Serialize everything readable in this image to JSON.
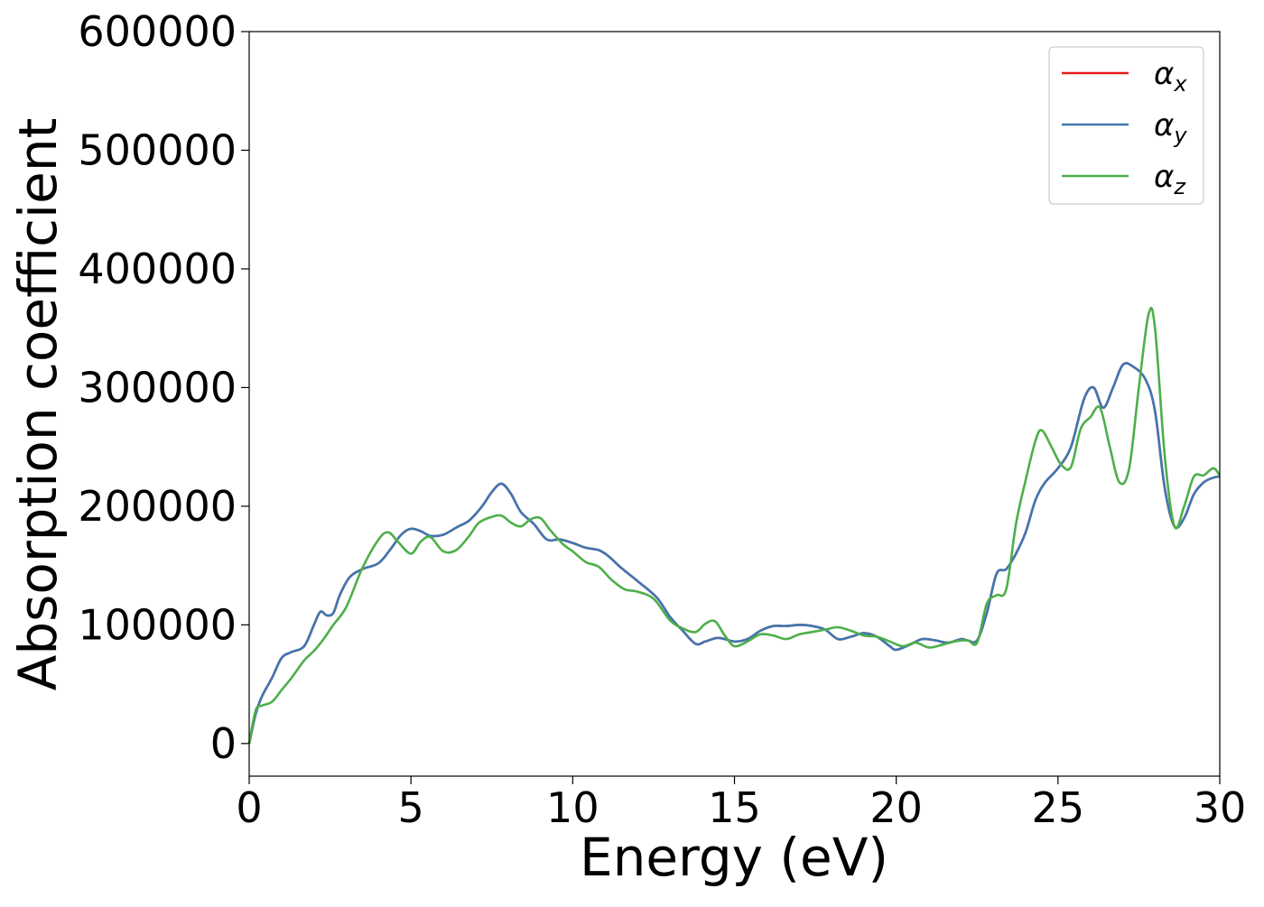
{
  "chart_data": {
    "type": "line",
    "xlabel": "Energy (eV)",
    "ylabel": "Absorption coefficient",
    "xlim": [
      0,
      30
    ],
    "ylim": [
      -27500,
      600000
    ],
    "xticks": [
      0,
      5,
      10,
      15,
      20,
      25,
      30
    ],
    "yticks": [
      0,
      100000,
      200000,
      300000,
      400000,
      500000,
      600000
    ],
    "grid": false,
    "legend_position": "top-right",
    "series": [
      {
        "name": "αx",
        "legend_symbol": "α",
        "legend_subscript": "x",
        "color": "#e41a1c",
        "x": [
          0,
          0.2,
          0.4,
          0.7,
          1.0,
          1.3,
          1.7,
          2.0,
          2.2,
          2.4,
          2.6,
          2.8,
          3.1,
          3.5,
          4.0,
          4.4,
          4.7,
          5.0,
          5.3,
          5.6,
          6.0,
          6.4,
          6.8,
          7.2,
          7.5,
          7.8,
          8.1,
          8.4,
          8.8,
          9.2,
          9.6,
          10.0,
          10.4,
          10.8,
          11.1,
          11.5,
          12.0,
          12.6,
          13.0,
          13.4,
          13.8,
          14.1,
          14.5,
          15.0,
          15.4,
          15.8,
          16.2,
          16.6,
          17.0,
          17.4,
          17.8,
          18.2,
          18.6,
          19.0,
          19.4,
          19.8,
          20.0,
          20.4,
          20.8,
          21.2,
          21.6,
          22.0,
          22.2,
          22.5,
          22.8,
          23.1,
          23.4,
          23.7,
          24.0,
          24.3,
          24.6,
          25.0,
          25.4,
          25.8,
          26.1,
          26.4,
          26.7,
          27.0,
          27.3,
          27.7,
          28.0,
          28.3,
          28.6,
          28.9,
          29.2,
          29.5,
          29.8,
          30.0
        ],
        "values": [
          0,
          25000,
          40000,
          55000,
          72000,
          77000,
          82000,
          100000,
          111000,
          108000,
          110000,
          125000,
          140000,
          147000,
          152000,
          165000,
          176000,
          181000,
          179000,
          175000,
          176000,
          182000,
          188000,
          200000,
          212000,
          219000,
          210000,
          195000,
          185000,
          172000,
          172000,
          169000,
          165000,
          163000,
          158000,
          148000,
          137000,
          123000,
          107000,
          95000,
          84000,
          86000,
          89000,
          86000,
          88000,
          95000,
          99000,
          99000,
          100000,
          99000,
          96000,
          88000,
          90000,
          93000,
          90000,
          82000,
          79000,
          83000,
          88000,
          87000,
          85000,
          88000,
          87000,
          87000,
          110000,
          143000,
          147000,
          160000,
          178000,
          205000,
          220000,
          232000,
          250000,
          290000,
          300000,
          283000,
          300000,
          319000,
          318000,
          307000,
          280000,
          215000,
          183000,
          190000,
          210000,
          220000,
          224000,
          225000
        ]
      },
      {
        "name": "αy",
        "legend_symbol": "α",
        "legend_subscript": "y",
        "color": "#3f77b2",
        "x": [
          0,
          0.2,
          0.4,
          0.7,
          1.0,
          1.3,
          1.7,
          2.0,
          2.2,
          2.4,
          2.6,
          2.8,
          3.1,
          3.5,
          4.0,
          4.4,
          4.7,
          5.0,
          5.3,
          5.6,
          6.0,
          6.4,
          6.8,
          7.2,
          7.5,
          7.8,
          8.1,
          8.4,
          8.8,
          9.2,
          9.6,
          10.0,
          10.4,
          10.8,
          11.1,
          11.5,
          12.0,
          12.6,
          13.0,
          13.4,
          13.8,
          14.1,
          14.5,
          15.0,
          15.4,
          15.8,
          16.2,
          16.6,
          17.0,
          17.4,
          17.8,
          18.2,
          18.6,
          19.0,
          19.4,
          19.8,
          20.0,
          20.4,
          20.8,
          21.2,
          21.6,
          22.0,
          22.2,
          22.5,
          22.8,
          23.1,
          23.4,
          23.7,
          24.0,
          24.3,
          24.6,
          25.0,
          25.4,
          25.8,
          26.1,
          26.4,
          26.7,
          27.0,
          27.3,
          27.7,
          28.0,
          28.3,
          28.6,
          28.9,
          29.2,
          29.5,
          29.8,
          30.0
        ],
        "values": [
          0,
          25000,
          40000,
          55000,
          72000,
          77000,
          82000,
          100000,
          111000,
          108000,
          110000,
          125000,
          140000,
          147000,
          152000,
          165000,
          176000,
          181000,
          179000,
          175000,
          176000,
          182000,
          188000,
          200000,
          212000,
          219000,
          210000,
          195000,
          185000,
          172000,
          172000,
          169000,
          165000,
          163000,
          158000,
          148000,
          137000,
          123000,
          107000,
          95000,
          84000,
          86000,
          89000,
          86000,
          88000,
          95000,
          99000,
          99000,
          100000,
          99000,
          96000,
          88000,
          90000,
          93000,
          90000,
          82000,
          79000,
          83000,
          88000,
          87000,
          85000,
          88000,
          87000,
          87000,
          110000,
          143000,
          147000,
          160000,
          178000,
          205000,
          220000,
          232000,
          250000,
          290000,
          300000,
          283000,
          300000,
          319000,
          318000,
          307000,
          280000,
          215000,
          183000,
          190000,
          210000,
          220000,
          224000,
          225000
        ]
      },
      {
        "name": "αz",
        "legend_symbol": "α",
        "legend_subscript": "z",
        "color": "#4daf4a",
        "x": [
          0,
          0.2,
          0.4,
          0.7,
          1.0,
          1.3,
          1.7,
          2.0,
          2.3,
          2.6,
          3.0,
          3.5,
          4.0,
          4.3,
          4.6,
          5.0,
          5.3,
          5.6,
          6.0,
          6.4,
          6.8,
          7.1,
          7.5,
          7.8,
          8.1,
          8.4,
          8.7,
          9.0,
          9.3,
          9.7,
          10.0,
          10.4,
          10.8,
          11.2,
          11.6,
          12.0,
          12.5,
          13.0,
          13.4,
          13.8,
          14.1,
          14.4,
          14.7,
          15.0,
          15.4,
          15.8,
          16.2,
          16.6,
          17.0,
          17.4,
          17.8,
          18.2,
          18.6,
          19.0,
          19.4,
          19.8,
          20.2,
          20.6,
          21.0,
          21.4,
          21.8,
          22.2,
          22.5,
          22.8,
          23.1,
          23.4,
          23.7,
          24.0,
          24.3,
          24.5,
          24.8,
          25.1,
          25.4,
          25.7,
          26.0,
          26.3,
          26.6,
          26.9,
          27.2,
          27.5,
          27.8,
          28.0,
          28.3,
          28.6,
          28.9,
          29.2,
          29.5,
          29.8,
          30.0
        ],
        "values": [
          0,
          28000,
          32000,
          35000,
          45000,
          55000,
          70000,
          78000,
          88000,
          100000,
          115000,
          148000,
          172000,
          178000,
          170000,
          160000,
          170000,
          174000,
          162000,
          163000,
          175000,
          186000,
          191000,
          192000,
          186000,
          183000,
          189000,
          190000,
          180000,
          168000,
          162000,
          153000,
          149000,
          138000,
          130000,
          128000,
          122000,
          104000,
          97000,
          94000,
          101000,
          103000,
          91000,
          82000,
          86000,
          92000,
          91000,
          88000,
          92000,
          94000,
          96000,
          98000,
          95000,
          91000,
          90000,
          86000,
          82000,
          85000,
          81000,
          83000,
          86000,
          87000,
          85000,
          118000,
          125000,
          130000,
          185000,
          222000,
          255000,
          264000,
          250000,
          235000,
          233000,
          265000,
          275000,
          283000,
          250000,
          220000,
          232000,
          300000,
          362000,
          350000,
          242000,
          183000,
          200000,
          225000,
          226000,
          232000,
          226000
        ]
      }
    ]
  }
}
